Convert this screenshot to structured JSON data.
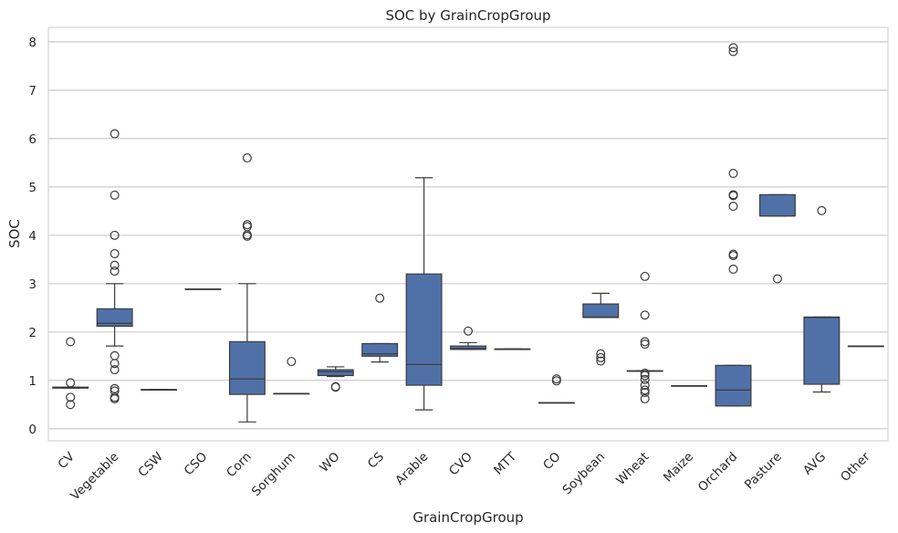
{
  "chart_data": {
    "type": "box",
    "title": "SOC by GrainCropGroup",
    "xlabel": "GrainCropGroup",
    "ylabel": "SOC",
    "ylim": [
      -0.25,
      8.3
    ],
    "yticks": [
      0,
      1,
      2,
      3,
      4,
      5,
      6,
      7,
      8
    ],
    "grid": true,
    "colors": {
      "box_fill": "#5071a8",
      "line": "#3b3b3b",
      "grid": "#cccccc",
      "frame": "#cccccc",
      "text": "#262626"
    },
    "categories": [
      "CV",
      "Vegetable",
      "CSW",
      "CSO",
      "Corn",
      "Sorghum",
      "WO",
      "CS",
      "Arable",
      "CVO",
      "MTT",
      "CO",
      "Soybean",
      "Wheat",
      "Maize",
      "Orchard",
      "Pasture",
      "AVG",
      "Other"
    ],
    "boxes": [
      {
        "q1": 0.84,
        "median": 0.85,
        "q3": 0.86,
        "whislo": 0.84,
        "whishi": 0.86,
        "fliers": [
          1.8,
          0.95,
          0.65,
          0.5
        ]
      },
      {
        "q1": 2.12,
        "median": 2.18,
        "q3": 2.48,
        "whislo": 1.71,
        "whishi": 3.0,
        "fliers": [
          6.1,
          4.83,
          4.0,
          3.62,
          3.38,
          3.26,
          1.51,
          1.35,
          1.22,
          0.83,
          0.78,
          0.65,
          0.62
        ]
      },
      {
        "q1": 0.81,
        "median": 0.81,
        "q3": 0.81,
        "whislo": 0.81,
        "whishi": 0.81,
        "fliers": []
      },
      {
        "q1": 2.89,
        "median": 2.89,
        "q3": 2.89,
        "whislo": 2.89,
        "whishi": 2.89,
        "fliers": []
      },
      {
        "q1": 0.71,
        "median": 1.03,
        "q3": 1.8,
        "whislo": 0.14,
        "whishi": 3.0,
        "fliers": [
          5.6,
          4.22,
          4.18,
          4.01,
          3.98
        ]
      },
      {
        "q1": 0.73,
        "median": 0.73,
        "q3": 0.73,
        "whislo": 0.73,
        "whishi": 0.73,
        "fliers": [
          1.39
        ]
      },
      {
        "q1": 1.1,
        "median": 1.18,
        "q3": 1.22,
        "whislo": 1.08,
        "whishi": 1.28,
        "fliers": [
          0.87,
          0.86
        ]
      },
      {
        "q1": 1.5,
        "median": 1.55,
        "q3": 1.76,
        "whislo": 1.38,
        "whishi": 1.76,
        "fliers": [
          2.7
        ]
      },
      {
        "q1": 0.9,
        "median": 1.33,
        "q3": 3.2,
        "whislo": 0.39,
        "whishi": 5.19,
        "fliers": []
      },
      {
        "q1": 1.64,
        "median": 1.66,
        "q3": 1.71,
        "whislo": 1.64,
        "whishi": 1.78,
        "fliers": [
          2.02
        ]
      },
      {
        "q1": 1.65,
        "median": 1.65,
        "q3": 1.65,
        "whislo": 1.65,
        "whishi": 1.65,
        "fliers": []
      },
      {
        "q1": 0.54,
        "median": 0.54,
        "q3": 0.54,
        "whislo": 0.54,
        "whishi": 0.54,
        "fliers": [
          1.03,
          0.99
        ]
      },
      {
        "q1": 2.3,
        "median": 2.31,
        "q3": 2.58,
        "whislo": 2.3,
        "whishi": 2.8,
        "fliers": [
          1.55,
          1.47,
          1.4
        ]
      },
      {
        "q1": 1.19,
        "median": 1.19,
        "q3": 1.2,
        "whislo": 1.19,
        "whishi": 1.2,
        "fliers": [
          3.15,
          2.35,
          1.8,
          1.75,
          1.15,
          1.1,
          1.02,
          0.9,
          0.8,
          0.75,
          0.62
        ]
      },
      {
        "q1": 0.89,
        "median": 0.89,
        "q3": 0.89,
        "whislo": 0.89,
        "whishi": 0.89,
        "fliers": []
      },
      {
        "q1": 0.47,
        "median": 0.8,
        "q3": 1.31,
        "whislo": 0.47,
        "whishi": 1.31,
        "fliers": [
          7.88,
          7.8,
          5.28,
          4.84,
          4.82,
          4.6,
          3.61,
          3.58,
          3.3
        ]
      },
      {
        "q1": 4.4,
        "median": 4.4,
        "q3": 4.84,
        "whislo": 4.4,
        "whishi": 4.84,
        "fliers": [
          3.1
        ]
      },
      {
        "q1": 0.92,
        "median": 2.3,
        "q3": 2.31,
        "whislo": 0.76,
        "whishi": 2.31,
        "fliers": [
          4.51
        ]
      },
      {
        "q1": 1.71,
        "median": 1.71,
        "q3": 1.71,
        "whislo": 1.71,
        "whishi": 1.71,
        "fliers": []
      }
    ]
  }
}
